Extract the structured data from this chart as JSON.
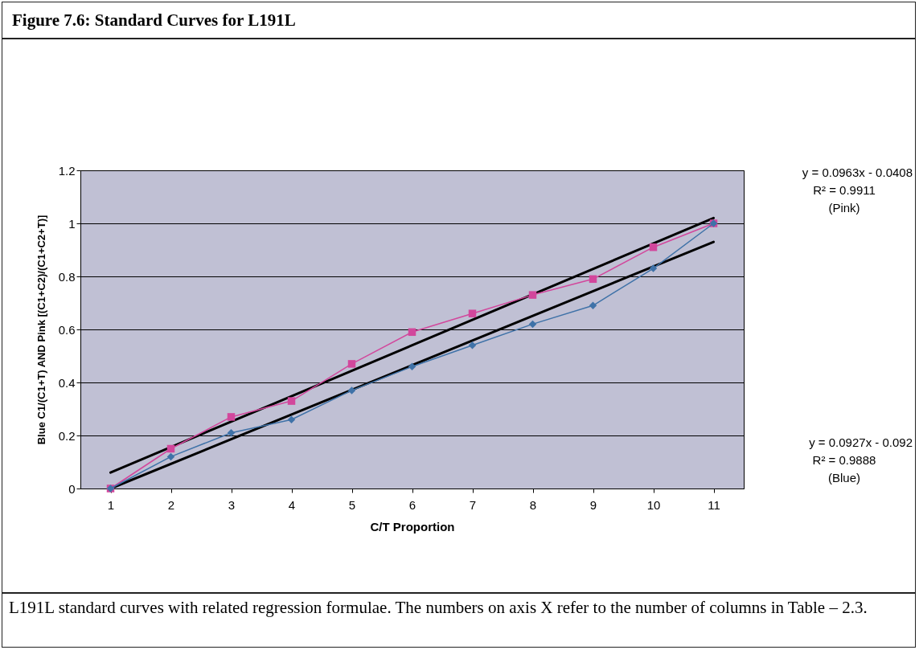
{
  "chart_data": {
    "type": "line",
    "title": "Figure 7.6: Standard Curves for L191L",
    "xlabel": "C/T Proportion",
    "ylabel": "Blue C1/(C1+T) AND Pink [(C1+C2)/(C1+C2+T)]",
    "categories": [
      "1",
      "2",
      "3",
      "4",
      "5",
      "6",
      "7",
      "8",
      "9",
      "10",
      "11"
    ],
    "series": [
      {
        "color": "#000000",
        "marker": "none",
        "x": [
          "1",
          "11"
        ],
        "values": [
          0.06,
          1.02
        ]
      },
      {
        "color": "#000000",
        "marker": "none",
        "x": [
          "1",
          "11"
        ],
        "values": [
          0.0,
          0.93
        ]
      },
      {
        "color": "#d2479c",
        "marker": "square",
        "values": [
          0,
          0.15,
          0.27,
          0.33,
          0.47,
          0.59,
          0.66,
          0.73,
          0.79,
          0.91,
          1.0
        ]
      },
      {
        "color": "#3f72a8",
        "marker": "diamond",
        "values": [
          0,
          0.12,
          0.21,
          0.26,
          0.37,
          0.46,
          0.54,
          0.62,
          0.69,
          0.83,
          1.0
        ]
      }
    ],
    "ylim": [
      0,
      1.2
    ],
    "yticks": [
      0,
      0.2,
      0.4,
      0.6,
      0.8,
      1,
      1.2
    ],
    "grid": "y",
    "line_style": "solid",
    "annotations": [
      "y = 0.0963x - 0.0408",
      "R² = 0.9911",
      "(Pink)",
      "y = 0.0927x - 0.092",
      "R² = 0.9888",
      "(Blue)",
      "L191L standard curves with related regression formulae. The numbers on axis X refer to the number of columns in Table – 2.3."
    ]
  }
}
